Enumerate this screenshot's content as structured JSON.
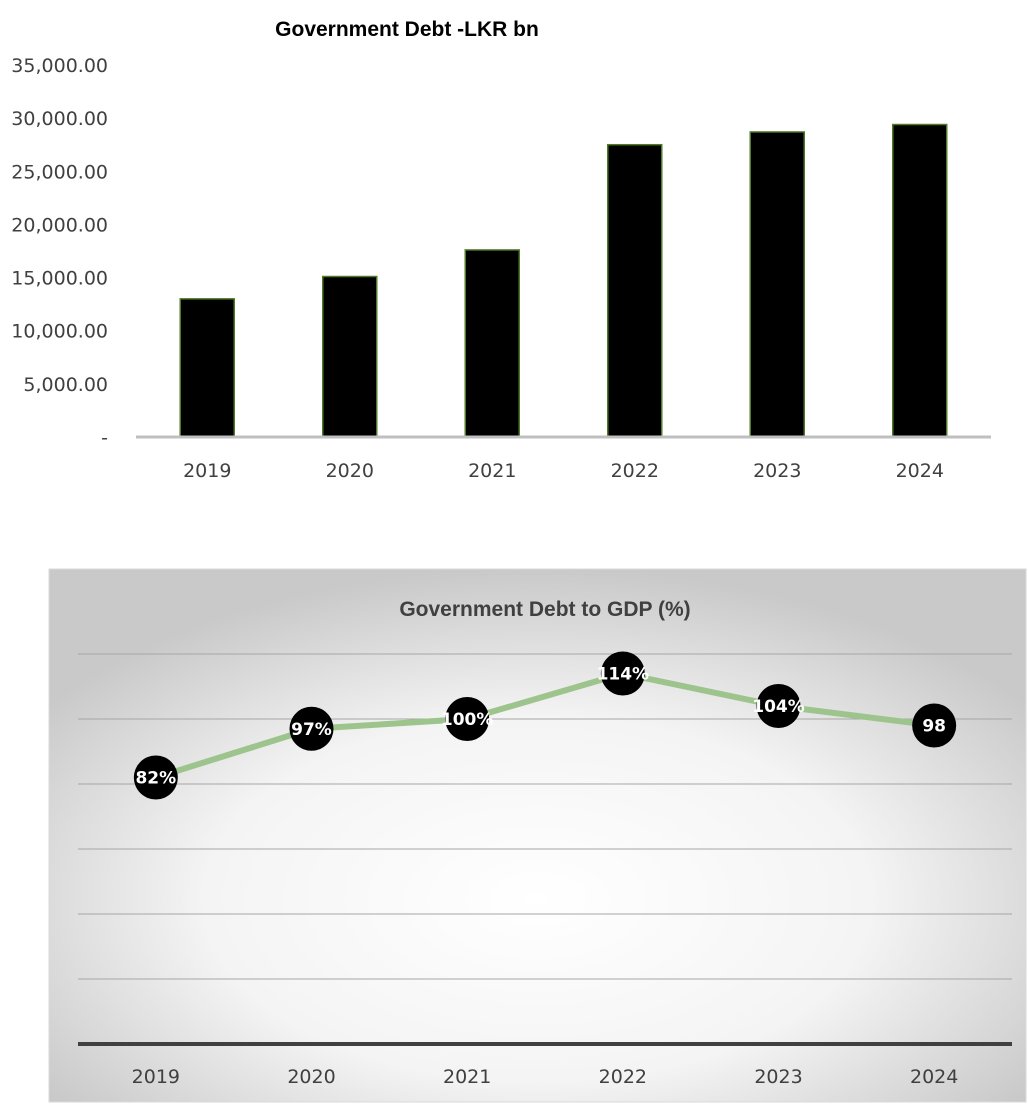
{
  "chart_data": [
    {
      "type": "bar",
      "title": "Government Debt -LKR bn",
      "categories": [
        "2019",
        "2020",
        "2021",
        "2022",
        "2023",
        "2024"
      ],
      "values": [
        13000,
        15100,
        17600,
        27500,
        28700,
        29400
      ],
      "yticks": [
        "-",
        "5,000.00",
        "10,000.00",
        "15,000.00",
        "20,000.00",
        "25,000.00",
        "30,000.00",
        "35,000.00"
      ],
      "ylim": [
        0,
        35000
      ],
      "xlabel": "",
      "ylabel": "",
      "grid": false,
      "legend": "none",
      "colors": {
        "bar": "#000000",
        "bar_edge": "#4f7a28",
        "axis": "#bfbfbf"
      }
    },
    {
      "type": "line",
      "title": "Government Debt to GDP (%)",
      "categories": [
        "2019",
        "2020",
        "2021",
        "2022",
        "2023",
        "2024"
      ],
      "values": [
        82,
        97,
        100,
        114,
        104,
        98
      ],
      "data_labels": [
        "82%",
        "97%",
        "100%",
        "114%",
        "104%",
        "98"
      ],
      "ylim": [
        0,
        120
      ],
      "xlabel": "",
      "ylabel": "",
      "grid": true,
      "legend": "none",
      "colors": {
        "line": "#9dc48d",
        "marker": "#000000",
        "grid": "#a6a6a6",
        "axis": "#404040",
        "frame": "#d9d9d9"
      }
    }
  ]
}
